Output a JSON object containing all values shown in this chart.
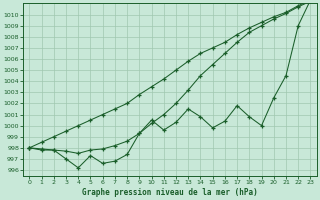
{
  "x": [
    0,
    1,
    2,
    3,
    4,
    5,
    6,
    7,
    8,
    9,
    10,
    11,
    12,
    13,
    14,
    15,
    16,
    17,
    18,
    19,
    20,
    21,
    22,
    23
  ],
  "y_jagged": [
    998.0,
    997.8,
    997.8,
    997.0,
    996.2,
    997.3,
    996.6,
    996.8,
    997.4,
    999.3,
    1000.5,
    999.6,
    1000.3,
    1001.5,
    1000.8,
    999.8,
    1000.4,
    1001.8,
    1000.8,
    1000.0,
    1002.5,
    1004.5,
    1009.0,
    1011.3
  ],
  "y_smooth_upper": [
    998.0,
    998.5,
    999.0,
    999.5,
    1000.0,
    1000.5,
    1001.0,
    1001.5,
    1002.0,
    1002.8,
    1003.5,
    1004.2,
    1005.0,
    1005.8,
    1006.5,
    1007.0,
    1007.5,
    1008.2,
    1008.8,
    1009.3,
    1009.8,
    1010.2,
    1010.8,
    1011.3
  ],
  "y_smooth_lower": [
    998.0,
    997.9,
    997.8,
    997.7,
    997.5,
    997.8,
    997.9,
    998.2,
    998.6,
    999.3,
    1000.2,
    1001.0,
    1002.0,
    1003.2,
    1004.5,
    1005.5,
    1006.5,
    1007.5,
    1008.4,
    1009.0,
    1009.6,
    1010.1,
    1010.7,
    1011.2
  ],
  "background_color": "#c8e8d8",
  "grid_color": "#a0c8b0",
  "line_color": "#1a5e2a",
  "title": "Graphe pression niveau de la mer (hPa)",
  "ylim": [
    995.5,
    1011.0
  ],
  "xlim": [
    -0.5,
    23.5
  ],
  "yticks": [
    996,
    997,
    998,
    999,
    1000,
    1001,
    1002,
    1003,
    1004,
    1005,
    1006,
    1007,
    1008,
    1009,
    1010
  ],
  "xticks": [
    0,
    1,
    2,
    3,
    4,
    5,
    6,
    7,
    8,
    9,
    10,
    11,
    12,
    13,
    14,
    15,
    16,
    17,
    18,
    19,
    20,
    21,
    22,
    23
  ]
}
